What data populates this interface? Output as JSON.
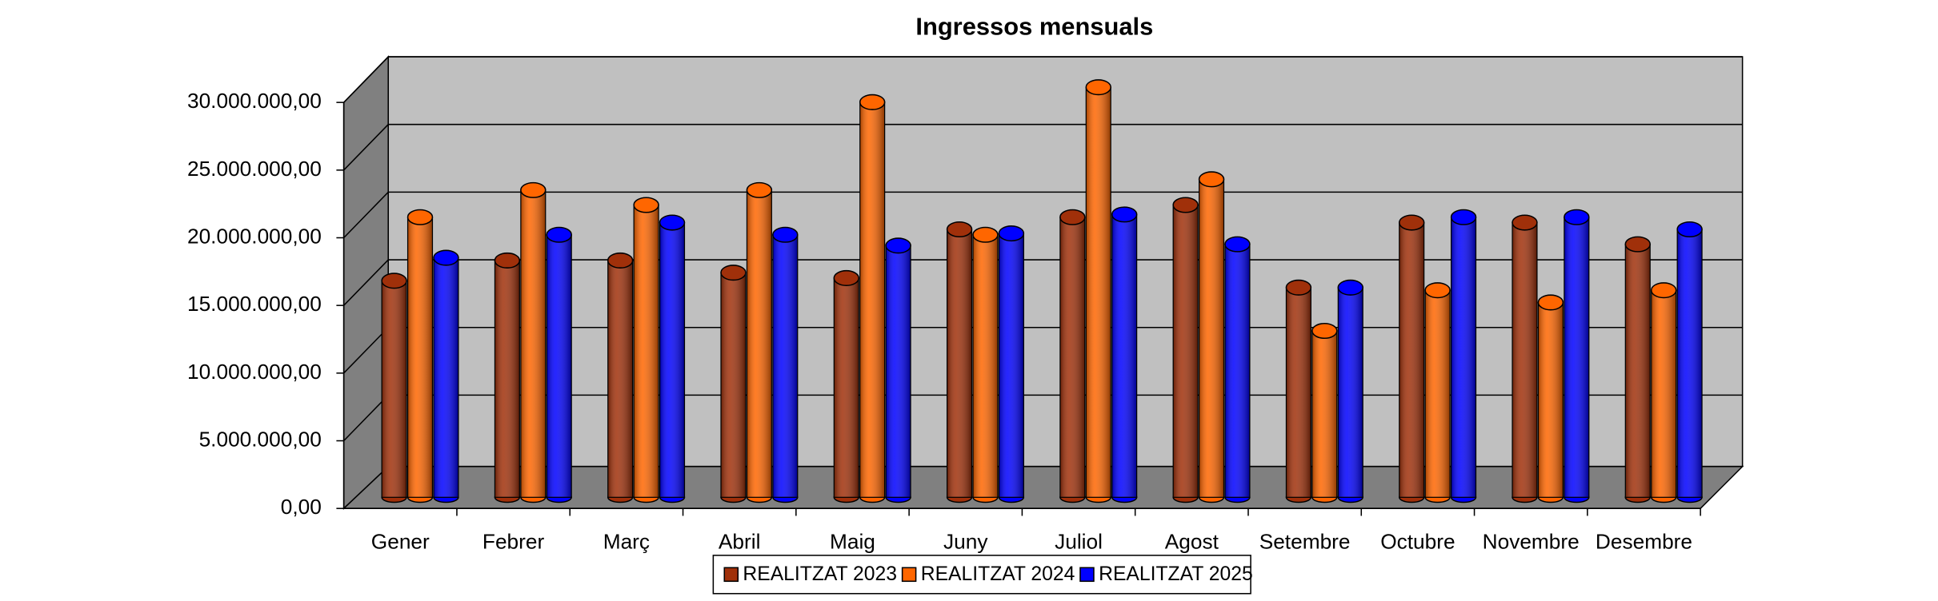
{
  "chart_data": {
    "type": "bar3d",
    "title": "Ingressos mensuals",
    "categories": [
      "Gener",
      "Febrer",
      "Març",
      "Abril",
      "Maig",
      "Juny",
      "Juliol",
      "Agost",
      "Setembre",
      "Octubre",
      "Novembre",
      "Desembre"
    ],
    "series": [
      {
        "name": "REALITZAT 2023",
        "color": "#a0300a",
        "values": [
          16000000,
          17500000,
          17500000,
          16600000,
          16200000,
          19800000,
          20700000,
          21600000,
          15500000,
          20300000,
          20300000,
          18700000
        ]
      },
      {
        "name": "REALITZAT 2024",
        "color": "#ff6600",
        "values": [
          20700000,
          22700000,
          21600000,
          22700000,
          29200000,
          19400000,
          30300000,
          23500000,
          12300000,
          15300000,
          14400000,
          15300000
        ]
      },
      {
        "name": "REALITZAT 2025",
        "color": "#0000ff",
        "values": [
          17700000,
          19400000,
          20300000,
          19400000,
          18600000,
          19500000,
          20900000,
          18700000,
          15500000,
          20700000,
          20700000,
          19800000
        ]
      }
    ],
    "ylim": [
      0,
      30000000
    ],
    "yticks": [
      {
        "value": 0,
        "label": "0,00"
      },
      {
        "value": 5000000,
        "label": "5.000.000,00"
      },
      {
        "value": 10000000,
        "label": "10.000.000,00"
      },
      {
        "value": 15000000,
        "label": "15.000.000,00"
      },
      {
        "value": 20000000,
        "label": "20.000.000,00"
      },
      {
        "value": 25000000,
        "label": "25.000.000,00"
      },
      {
        "value": 30000000,
        "label": "30.000.000,00"
      }
    ],
    "grid": true,
    "legend": "bottom"
  }
}
